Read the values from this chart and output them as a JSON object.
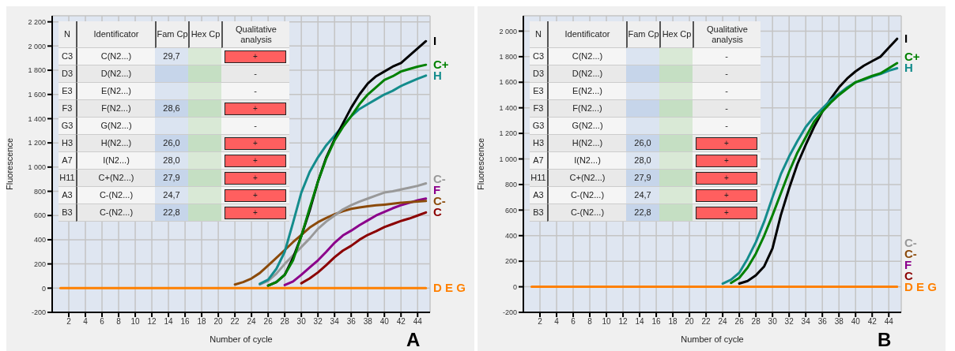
{
  "chart_data": [
    {
      "type": "line",
      "title": "A",
      "xlabel": "Number of cycle",
      "ylabel": "Fluorescence",
      "grid": true,
      "xlim": [
        0,
        45.5
      ],
      "xticks": [
        2,
        4,
        6,
        8,
        10,
        12,
        14,
        16,
        18,
        20,
        22,
        24,
        26,
        28,
        30,
        32,
        34,
        36,
        38,
        40,
        42,
        44
      ],
      "ylim": [
        -200,
        2250
      ],
      "yticks": [
        -200,
        0,
        200,
        400,
        600,
        800,
        {
          "value": 1000,
          "label": "1 000"
        },
        {
          "value": 1200,
          "label": "1 200"
        },
        {
          "value": 1400,
          "label": "1 400"
        },
        {
          "value": 1600,
          "label": "1 600"
        },
        {
          "value": 1800,
          "label": "1 800"
        },
        {
          "value": 2000,
          "label": "2 000"
        },
        {
          "value": 2200,
          "label": "2 200"
        }
      ],
      "x": [
        1,
        10,
        18,
        20,
        21,
        22,
        23,
        24,
        25,
        26,
        27,
        28,
        29,
        30,
        31,
        32,
        33,
        34,
        35,
        36,
        37,
        38,
        39,
        40,
        41,
        42,
        43,
        44,
        45
      ],
      "series": [
        {
          "name": "C",
          "color": "#8b0000",
          "values": [
            null,
            null,
            null,
            null,
            null,
            null,
            null,
            null,
            null,
            null,
            null,
            null,
            null,
            40,
            80,
            130,
            190,
            255,
            310,
            350,
            400,
            440,
            470,
            505,
            530,
            555,
            575,
            600,
            625
          ]
        },
        {
          "name": "F",
          "color": "#8b008b",
          "values": [
            null,
            null,
            null,
            null,
            null,
            null,
            null,
            null,
            null,
            null,
            null,
            25,
            55,
            110,
            170,
            230,
            300,
            375,
            435,
            475,
            520,
            560,
            600,
            630,
            660,
            685,
            705,
            725,
            740
          ]
        },
        {
          "name": "C-",
          "color": "#8b4a0a",
          "values": [
            null,
            null,
            null,
            null,
            null,
            30,
            50,
            80,
            125,
            187,
            250,
            315,
            380,
            440,
            500,
            545,
            580,
            610,
            635,
            655,
            667,
            677,
            684,
            690,
            697,
            705,
            710,
            715,
            720
          ]
        },
        {
          "name": "C-",
          "color": "#999999",
          "values": [
            null,
            null,
            null,
            null,
            null,
            null,
            null,
            null,
            30,
            60,
            120,
            200,
            270,
            340,
            410,
            490,
            550,
            600,
            650,
            685,
            715,
            740,
            765,
            790,
            800,
            815,
            830,
            845,
            865
          ]
        },
        {
          "name": "H",
          "color": "#148c8c",
          "values": [
            null,
            null,
            null,
            null,
            null,
            null,
            null,
            null,
            35,
            70,
            160,
            300,
            540,
            790,
            960,
            1080,
            1180,
            1260,
            1340,
            1420,
            1480,
            1520,
            1560,
            1600,
            1630,
            1670,
            1700,
            1730,
            1756
          ]
        },
        {
          "name": "I",
          "color": "#000000",
          "values": [
            null,
            null,
            null,
            null,
            null,
            null,
            null,
            null,
            null,
            20,
            50,
            110,
            250,
            430,
            640,
            880,
            1080,
            1230,
            1360,
            1490,
            1600,
            1690,
            1750,
            1790,
            1830,
            1860,
            1920,
            1980,
            2040
          ]
        },
        {
          "name": "C+",
          "color": "#008000",
          "values": [
            null,
            null,
            null,
            null,
            null,
            null,
            null,
            null,
            null,
            20,
            50,
            110,
            230,
            430,
            660,
            880,
            1070,
            1220,
            1330,
            1420,
            1520,
            1600,
            1660,
            1720,
            1750,
            1790,
            1810,
            1830,
            1845
          ]
        },
        {
          "name": "D E G",
          "color": "#ff8000",
          "values": [
            0,
            0,
            0,
            0,
            0,
            0,
            0,
            0,
            0,
            0,
            0,
            0,
            0,
            0,
            0,
            0,
            0,
            0,
            0,
            0,
            0,
            0,
            0,
            0,
            0,
            0,
            0,
            0,
            0
          ]
        }
      ],
      "annotations": [
        "N",
        "Identificator",
        "Fam Cp",
        "Hex Cp",
        "Qualitative analysis",
        "C3",
        "C(N2...)",
        "29,7",
        null,
        "+",
        "D3",
        "D(N2...)",
        null,
        null,
        "-",
        "E3",
        "E(N2...)",
        null,
        null,
        "-",
        "F3",
        "F(N2...)",
        "28,6",
        null,
        "+",
        "G3",
        "G(N2...)",
        null,
        null,
        "-",
        "H3",
        "H(N2...)",
        "26,0",
        null,
        "+",
        "A7",
        "I(N2...)",
        "28,0",
        null,
        "+",
        "H11",
        "C+(N2...)",
        "27,9",
        null,
        "+",
        "A3",
        "C-(N2...)",
        "24,7",
        null,
        "+",
        "B3",
        "C-(N2...)",
        "22,8",
        null,
        "+"
      ]
    },
    {
      "type": "line",
      "title": "B",
      "xlabel": "Number of cycle",
      "ylabel": "Fluorescence",
      "grid": true,
      "xlim": [
        0,
        45.5
      ],
      "xticks": [
        2,
        4,
        6,
        8,
        10,
        12,
        14,
        16,
        18,
        20,
        22,
        24,
        26,
        28,
        30,
        32,
        34,
        36,
        38,
        40,
        42,
        44
      ],
      "ylim": [
        -200,
        2120
      ],
      "yticks": [
        -200,
        0,
        200,
        400,
        600,
        800,
        {
          "value": 1000,
          "label": "1 000"
        },
        {
          "value": 1200,
          "label": "1 200"
        },
        {
          "value": 1400,
          "label": "1 400"
        },
        {
          "value": 1600,
          "label": "1 600"
        },
        {
          "value": 1800,
          "label": "1 800"
        },
        {
          "value": 2000,
          "label": "2 000"
        }
      ],
      "x": [
        1,
        10,
        18,
        20,
        21,
        22,
        23,
        24,
        25,
        26,
        27,
        28,
        29,
        30,
        31,
        32,
        33,
        34,
        35,
        36,
        37,
        38,
        39,
        40,
        41,
        42,
        43,
        44,
        45
      ],
      "series": [
        {
          "name": "C",
          "color": "#8b0000",
          "values": [
            null,
            null,
            null,
            null,
            null,
            null,
            null,
            null,
            null,
            null,
            null,
            null,
            null,
            null,
            null,
            null,
            null,
            null,
            null,
            null,
            null,
            null,
            null,
            null,
            null,
            null,
            null,
            null,
            null
          ]
        },
        {
          "name": "F",
          "color": "#8b008b",
          "values": [
            null,
            null,
            null,
            null,
            null,
            null,
            null,
            null,
            null,
            null,
            null,
            null,
            null,
            null,
            null,
            null,
            null,
            null,
            null,
            null,
            null,
            null,
            null,
            null,
            null,
            null,
            null,
            null,
            null
          ]
        },
        {
          "name": "C-",
          "color": "#8b4a0a",
          "values": [
            null,
            null,
            null,
            null,
            null,
            null,
            null,
            null,
            null,
            null,
            null,
            null,
            null,
            null,
            null,
            null,
            null,
            null,
            null,
            null,
            null,
            null,
            null,
            null,
            null,
            null,
            null,
            null,
            null
          ]
        },
        {
          "name": "C-",
          "color": "#999999",
          "values": [
            null,
            null,
            null,
            null,
            null,
            null,
            null,
            null,
            null,
            null,
            null,
            null,
            null,
            null,
            null,
            null,
            null,
            null,
            null,
            null,
            null,
            null,
            null,
            null,
            null,
            null,
            null,
            null,
            null
          ]
        },
        {
          "name": "I",
          "color": "#000000",
          "values": [
            null,
            null,
            null,
            null,
            null,
            null,
            null,
            null,
            null,
            25,
            45,
            90,
            160,
            300,
            560,
            770,
            960,
            1110,
            1250,
            1370,
            1470,
            1560,
            1630,
            1685,
            1730,
            1765,
            1800,
            1870,
            1940
          ]
        },
        {
          "name": "H",
          "color": "#148c8c",
          "values": [
            null,
            null,
            null,
            null,
            null,
            null,
            null,
            25,
            55,
            110,
            220,
            350,
            510,
            700,
            880,
            1020,
            1140,
            1250,
            1330,
            1395,
            1460,
            1510,
            1560,
            1600,
            1620,
            1645,
            1665,
            1690,
            1710
          ]
        },
        {
          "name": "C+",
          "color": "#008000",
          "values": [
            null,
            null,
            null,
            null,
            null,
            null,
            null,
            null,
            30,
            70,
            150,
            260,
            400,
            560,
            730,
            900,
            1050,
            1170,
            1290,
            1370,
            1440,
            1500,
            1550,
            1600,
            1625,
            1650,
            1670,
            1710,
            1750
          ]
        },
        {
          "name": "D E G",
          "color": "#ff8000",
          "values": [
            0,
            0,
            0,
            0,
            0,
            0,
            0,
            0,
            0,
            0,
            0,
            0,
            0,
            0,
            0,
            0,
            0,
            0,
            0,
            0,
            0,
            0,
            0,
            0,
            0,
            0,
            0,
            0,
            0
          ]
        }
      ],
      "annotations": [
        "N",
        "Identificator",
        "Fam Cp",
        "Hex Cp",
        "Qualitative analysis",
        "C3",
        "C(N2...)",
        null,
        null,
        "-",
        "D3",
        "D(N2...)",
        null,
        null,
        "-",
        "E3",
        "E(N2...)",
        null,
        null,
        "-",
        "F3",
        "F(N2...)",
        null,
        null,
        "-",
        "G3",
        "G(N2...)",
        null,
        null,
        "-",
        "H3",
        "H(N2...)",
        "26,0",
        null,
        "+",
        "A7",
        "I(N2...)",
        "28,0",
        null,
        "+",
        "H11",
        "C+(N2...)",
        "27,9",
        null,
        "+",
        "A3",
        "C-(N2...)",
        "24,7",
        null,
        "+",
        "B3",
        "C-(N2...)",
        "22,8",
        null,
        "+"
      ]
    }
  ]
}
